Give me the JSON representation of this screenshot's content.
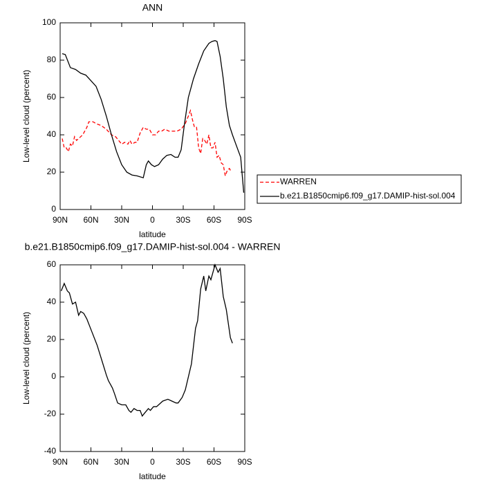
{
  "chart_data": [
    {
      "type": "line",
      "title": "ANN",
      "xlabel": "latitude",
      "ylabel": "Low-level cloud (percent)",
      "xlim": [
        90,
        -90
      ],
      "xticks": [
        {
          "value": 90,
          "label": "90N"
        },
        {
          "value": 60,
          "label": "60N"
        },
        {
          "value": 30,
          "label": "30N"
        },
        0,
        {
          "value": -30,
          "label": "30S"
        },
        {
          "value": -60,
          "label": "60S"
        },
        {
          "value": -90,
          "label": "90S"
        }
      ],
      "ylim": [
        0,
        100
      ],
      "yticks": [
        0,
        20,
        40,
        60,
        80,
        100
      ],
      "legend": "outside-right",
      "series": [
        {
          "name": "WARREN",
          "color": "#ff0000",
          "dash": true,
          "x": [
            88,
            86,
            84,
            82,
            80,
            78,
            76,
            74,
            72,
            68,
            64,
            62,
            58,
            55,
            50,
            45,
            40,
            36,
            33,
            30,
            27,
            24,
            22,
            20,
            17,
            15,
            12,
            9,
            6,
            3,
            0,
            -3,
            -6,
            -9,
            -12,
            -16,
            -20,
            -24,
            -28,
            -32,
            -35,
            -37,
            -39,
            -41,
            -43,
            -45,
            -47,
            -49,
            -51,
            -53,
            -55,
            -57,
            -59,
            -61,
            -63,
            -65,
            -67,
            -69,
            -71,
            -73,
            -75,
            -77
          ],
          "values": [
            38,
            33,
            33,
            31,
            35,
            34,
            39,
            37,
            38,
            40,
            44,
            47,
            47,
            46,
            45,
            43,
            40,
            39,
            37,
            35,
            36,
            35,
            37,
            35,
            36,
            36,
            41,
            44,
            43,
            43,
            40,
            40,
            42,
            42,
            43,
            42,
            42,
            42,
            43,
            46,
            50,
            53,
            48,
            44,
            44,
            33,
            30,
            38,
            37,
            35,
            40,
            33,
            33,
            36,
            28,
            29,
            25,
            24,
            18,
            21,
            22,
            20
          ]
        },
        {
          "name": "b.e21.B1850cmip6.f09_g17.DAMIP-hist-sol.004",
          "color": "#000000",
          "dash": false,
          "x": [
            88,
            85,
            80,
            75,
            70,
            65,
            60,
            55,
            50,
            45,
            40,
            35,
            30,
            25,
            20,
            15,
            12,
            9,
            6,
            4,
            1,
            -2,
            -6,
            -10,
            -14,
            -18,
            -22,
            -25,
            -28,
            -31,
            -35,
            -40,
            -45,
            -50,
            -55,
            -58,
            -61,
            -63,
            -66,
            -69,
            -72,
            -75,
            -78,
            -82,
            -86,
            -89
          ],
          "values": [
            83.5,
            83,
            76,
            75,
            73,
            72,
            69,
            66,
            59,
            50,
            40,
            31,
            24,
            20,
            18.5,
            18,
            17.5,
            17,
            24,
            26,
            24,
            23,
            24,
            27,
            29,
            29.5,
            28,
            28,
            32,
            45,
            60,
            70,
            78,
            85,
            89,
            90,
            90.5,
            90,
            82,
            70,
            55,
            45,
            40,
            34,
            28,
            9
          ]
        }
      ]
    },
    {
      "type": "line",
      "title": "b.e21.B1850cmip6.f09_g17.DAMIP-hist-sol.004 - WARREN",
      "xlabel": "latitude",
      "ylabel": "Low-level cloud (percent)",
      "xlim": [
        90,
        -90
      ],
      "xticks": [
        {
          "value": 90,
          "label": "90N"
        },
        {
          "value": 60,
          "label": "60N"
        },
        {
          "value": 30,
          "label": "30N"
        },
        0,
        {
          "value": -30,
          "label": "30S"
        },
        {
          "value": -60,
          "label": "60S"
        },
        {
          "value": -90,
          "label": "90S"
        }
      ],
      "ylim": [
        -40,
        60
      ],
      "yticks": [
        -40,
        -20,
        0,
        20,
        40,
        60
      ],
      "color": "#000000",
      "x": [
        89,
        86,
        83,
        81,
        78,
        75,
        72,
        70,
        67,
        64,
        59,
        54,
        50,
        45,
        43,
        39,
        37,
        34,
        30,
        26,
        23,
        21,
        18,
        15,
        12,
        10,
        7,
        4,
        2,
        -1,
        -4,
        -6,
        -10,
        -15,
        -19,
        -23,
        -25,
        -29,
        -32,
        -38,
        -42,
        -44,
        -47,
        -50,
        -52,
        -55,
        -57,
        -61,
        -64,
        -66,
        -69,
        -72,
        -76,
        -78
      ],
      "values": [
        46,
        50,
        46,
        45,
        39,
        40,
        33,
        35,
        34,
        31,
        24,
        17,
        10,
        1,
        -2,
        -6,
        -9,
        -14,
        -15,
        -15,
        -18,
        -19,
        -17,
        -18,
        -18,
        -21,
        -19,
        -17,
        -18,
        -16,
        -16,
        -15,
        -13,
        -12,
        -13,
        -14,
        -14,
        -11,
        -7,
        7,
        26,
        30,
        47,
        54,
        46,
        54,
        52,
        60,
        56,
        58,
        43,
        36,
        21,
        18
      ]
    }
  ]
}
